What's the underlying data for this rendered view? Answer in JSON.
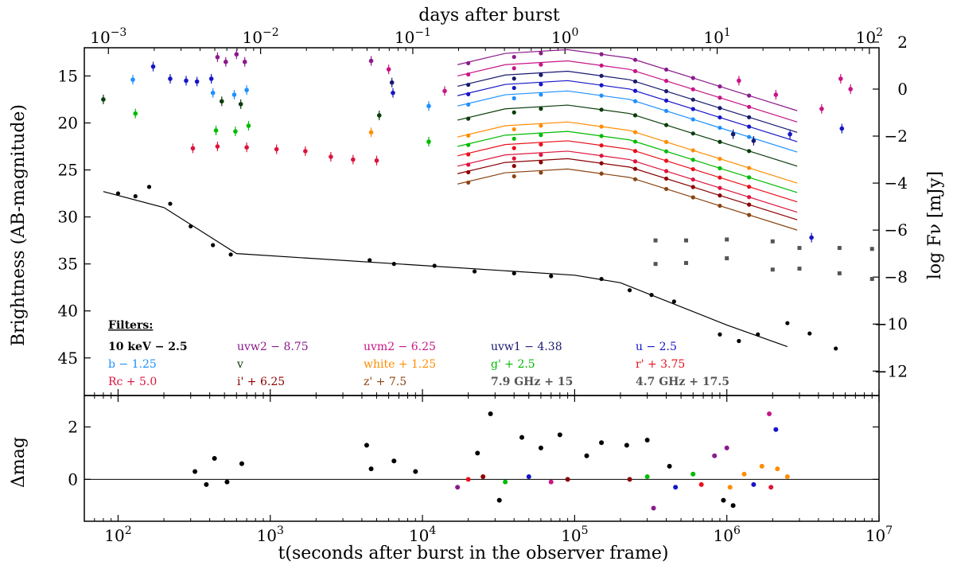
{
  "chart_data": [
    {
      "type": "scatter",
      "panel": "main",
      "xlabel_bottom": "t(seconds after burst in the observer frame)",
      "xlabel_top": "days after burst",
      "ylabel_left": "Brightness (AB-magnitude)",
      "ylabel_right": "log Fν [mJy]",
      "xscale": "log",
      "xlim": [
        60,
        10000000
      ],
      "ylim": [
        12,
        49
      ],
      "y_inverted": true,
      "y_ticks": [
        15,
        20,
        25,
        30,
        35,
        40,
        45
      ],
      "y2_ticks": [
        2,
        0,
        -2,
        -4,
        -6,
        -8,
        -10,
        -12
      ],
      "y2_tick_labels": [
        "2",
        "0",
        "−2",
        "−4",
        "−6",
        "−8",
        "−10",
        "−12"
      ],
      "x_ticks": [
        {
          "base": "10",
          "exp": "2",
          "value": 100
        },
        {
          "base": "10",
          "exp": "3",
          "value": 1000
        },
        {
          "base": "10",
          "exp": "4",
          "value": 10000
        },
        {
          "base": "10",
          "exp": "5",
          "value": 100000
        },
        {
          "base": "10",
          "exp": "6",
          "value": 1000000
        },
        {
          "base": "10",
          "exp": "7",
          "value": 10000000
        }
      ],
      "top_ticks": [
        {
          "base": "10",
          "exp": "−3",
          "value_days": 0.001
        },
        {
          "base": "10",
          "exp": "−2",
          "value_days": 0.01
        },
        {
          "base": "10",
          "exp": "−1",
          "value_days": 0.1
        },
        {
          "base": "10",
          "exp": "0",
          "value_days": 1
        },
        {
          "base": "10",
          "exp": "1",
          "value_days": 10
        },
        {
          "base": "10",
          "exp": "2",
          "value_days": 100
        }
      ],
      "legend_title": "Filters:",
      "legend": [
        {
          "label": "10 keV − 2.5",
          "color": "#000000"
        },
        {
          "label": "uvw2 − 8.75",
          "color": "#8B1A8B"
        },
        {
          "label": "uvm2 − 6.25",
          "color": "#C71585"
        },
        {
          "label": "uvw1 − 4.38",
          "color": "#191970"
        },
        {
          "label": "u − 2.5",
          "color": "#1515C8"
        },
        {
          "label": "b − 1.25",
          "color": "#1E90FF"
        },
        {
          "label": "v",
          "color": "#0B3D0B"
        },
        {
          "label": "white + 1.25",
          "color": "#FF8C00"
        },
        {
          "label": "g' + 2.5",
          "color": "#00BB00"
        },
        {
          "label": "r' + 3.75",
          "color": "#E8101A"
        },
        {
          "label": "Rc + 5.0",
          "color": "#DC143C"
        },
        {
          "label": "i' + 6.25",
          "color": "#8B0000"
        },
        {
          "label": "z' + 7.5",
          "color": "#8B4513"
        },
        {
          "label": "7.9 GHz + 15",
          "color": "#555555"
        },
        {
          "label": "4.7 GHz + 17.5",
          "color": "#555555"
        }
      ],
      "xray_curve": {
        "x": [
          80,
          200,
          600,
          100000,
          200000,
          1000000,
          2500000
        ],
        "y": [
          27.3,
          29.0,
          33.9,
          36.2,
          37.0,
          41.5,
          43.8
        ]
      },
      "xray_points": [
        {
          "x": 100,
          "y": 27.5
        },
        {
          "x": 130,
          "y": 27.8
        },
        {
          "x": 160,
          "y": 26.8
        },
        {
          "x": 220,
          "y": 28.6
        },
        {
          "x": 300,
          "y": 31.0
        },
        {
          "x": 420,
          "y": 33.0
        },
        {
          "x": 550,
          "y": 34.0
        },
        {
          "x": 4500,
          "y": 34.6
        },
        {
          "x": 6500,
          "y": 35.0
        },
        {
          "x": 12000,
          "y": 35.2
        },
        {
          "x": 22000,
          "y": 35.8
        },
        {
          "x": 40000,
          "y": 36.0
        },
        {
          "x": 70000,
          "y": 36.3
        },
        {
          "x": 150000,
          "y": 36.6
        },
        {
          "x": 230000,
          "y": 37.8
        },
        {
          "x": 320000,
          "y": 38.3
        },
        {
          "x": 450000,
          "y": 39.0
        },
        {
          "x": 900000,
          "y": 42.5
        },
        {
          "x": 1200000,
          "y": 43.2
        },
        {
          "x": 1600000,
          "y": 42.5
        },
        {
          "x": 2500000,
          "y": 41.3
        },
        {
          "x": 3500000,
          "y": 42.4
        },
        {
          "x": 5200000,
          "y": 44.0
        }
      ],
      "model_curves": [
        {
          "name": "uvw2",
          "color": "#8B1A8B",
          "m_peak": 12.2,
          "m_end": 18.7
        },
        {
          "name": "uvm2",
          "color": "#C71585",
          "m_peak": 13.4,
          "m_end": 19.9
        },
        {
          "name": "uvw1",
          "color": "#191970",
          "m_peak": 14.5,
          "m_end": 21.0
        },
        {
          "name": "u",
          "color": "#1515C8",
          "m_peak": 15.5,
          "m_end": 22.0
        },
        {
          "name": "b",
          "color": "#1E90FF",
          "m_peak": 16.6,
          "m_end": 23.1
        },
        {
          "name": "v",
          "color": "#0B3D0B",
          "m_peak": 18.1,
          "m_end": 24.6
        },
        {
          "name": "white",
          "color": "#FF8C00",
          "m_peak": 19.9,
          "m_end": 26.4
        },
        {
          "name": "g'",
          "color": "#00BB00",
          "m_peak": 20.9,
          "m_end": 27.4
        },
        {
          "name": "r'",
          "color": "#E8101A",
          "m_peak": 21.9,
          "m_end": 28.4
        },
        {
          "name": "Rc",
          "color": "#DC143C",
          "m_peak": 23.0,
          "m_end": 29.5
        },
        {
          "name": "i'",
          "color": "#8B0000",
          "m_peak": 23.8,
          "m_end": 30.3
        },
        {
          "name": "z'",
          "color": "#8B4513",
          "m_peak": 24.9,
          "m_end": 31.4
        }
      ],
      "optical_points": [
        {
          "x": 80,
          "y": 17.5,
          "c": "#0B3D0B"
        },
        {
          "x": 125,
          "y": 15.4,
          "c": "#1E90FF"
        },
        {
          "x": 130,
          "y": 19.0,
          "c": "#00BB00"
        },
        {
          "x": 170,
          "y": 14.0,
          "c": "#1515C8"
        },
        {
          "x": 220,
          "y": 15.3,
          "c": "#1515C8"
        },
        {
          "x": 280,
          "y": 15.5,
          "c": "#1515C8"
        },
        {
          "x": 330,
          "y": 15.6,
          "c": "#1515C8"
        },
        {
          "x": 410,
          "y": 15.3,
          "c": "#1515C8"
        },
        {
          "x": 450,
          "y": 13.0,
          "c": "#8B1A8B"
        },
        {
          "x": 510,
          "y": 13.5,
          "c": "#8B1A8B"
        },
        {
          "x": 600,
          "y": 12.7,
          "c": "#8B1A8B"
        },
        {
          "x": 680,
          "y": 13.5,
          "c": "#8B1A8B"
        },
        {
          "x": 420,
          "y": 16.8,
          "c": "#1E90FF"
        },
        {
          "x": 580,
          "y": 17.0,
          "c": "#1E90FF"
        },
        {
          "x": 700,
          "y": 16.5,
          "c": "#1E90FF"
        },
        {
          "x": 480,
          "y": 17.7,
          "c": "#0B3D0B"
        },
        {
          "x": 640,
          "y": 18.0,
          "c": "#0B3D0B"
        },
        {
          "x": 440,
          "y": 20.8,
          "c": "#00BB00"
        },
        {
          "x": 590,
          "y": 20.9,
          "c": "#00BB00"
        },
        {
          "x": 720,
          "y": 20.3,
          "c": "#00BB00"
        },
        {
          "x": 310,
          "y": 22.7,
          "c": "#DC143C"
        },
        {
          "x": 450,
          "y": 22.5,
          "c": "#DC143C"
        },
        {
          "x": 700,
          "y": 22.6,
          "c": "#DC143C"
        },
        {
          "x": 1100,
          "y": 22.8,
          "c": "#DC143C"
        },
        {
          "x": 1700,
          "y": 23.0,
          "c": "#DC143C"
        },
        {
          "x": 2500,
          "y": 23.6,
          "c": "#DC143C"
        },
        {
          "x": 3500,
          "y": 23.9,
          "c": "#DC143C"
        },
        {
          "x": 5000,
          "y": 24.0,
          "c": "#DC143C"
        },
        {
          "x": 4600,
          "y": 13.4,
          "c": "#8B1A8B"
        },
        {
          "x": 6000,
          "y": 14.3,
          "c": "#C71585"
        },
        {
          "x": 6300,
          "y": 15.7,
          "c": "#191970"
        },
        {
          "x": 6400,
          "y": 16.8,
          "c": "#1515C8"
        },
        {
          "x": 5200,
          "y": 19.2,
          "c": "#0B3D0B"
        },
        {
          "x": 4600,
          "y": 21.0,
          "c": "#FF8C00"
        },
        {
          "x": 11000,
          "y": 18.2,
          "c": "#1E90FF"
        },
        {
          "x": 11000,
          "y": 22.0,
          "c": "#00BB00"
        },
        {
          "x": 14000,
          "y": 16.6,
          "c": "#C71585"
        },
        {
          "x": 2600000,
          "y": 21.2,
          "c": "#1515C8"
        },
        {
          "x": 1100000,
          "y": 21.2,
          "c": "#191970"
        },
        {
          "x": 1500000,
          "y": 21.9,
          "c": "#191970"
        },
        {
          "x": 2100000,
          "y": 17.0,
          "c": "#C71585"
        },
        {
          "x": 3600000,
          "y": 32.2,
          "c": "#1515C8"
        },
        {
          "x": 4200000,
          "y": 18.5,
          "c": "#C71585"
        },
        {
          "x": 5600000,
          "y": 15.3,
          "c": "#C71585"
        },
        {
          "x": 5700000,
          "y": 20.6,
          "c": "#1515C8"
        },
        {
          "x": 6500000,
          "y": 16.4,
          "c": "#C71585"
        },
        {
          "x": 1200000,
          "y": 15.5,
          "c": "#C71585"
        }
      ],
      "radio_points": [
        {
          "x": 340000,
          "y": 32.5
        },
        {
          "x": 540000,
          "y": 32.5
        },
        {
          "x": 1000000,
          "y": 32.4
        },
        {
          "x": 2000000,
          "y": 32.6
        },
        {
          "x": 3000000,
          "y": 33.3
        },
        {
          "x": 5500000,
          "y": 33.3
        },
        {
          "x": 9000000,
          "y": 33.4
        },
        {
          "x": 340000,
          "y": 35.0
        },
        {
          "x": 540000,
          "y": 34.9
        },
        {
          "x": 1000000,
          "y": 34.4
        },
        {
          "x": 2000000,
          "y": 35.6
        },
        {
          "x": 3000000,
          "y": 35.5
        },
        {
          "x": 5500000,
          "y": 36.0
        },
        {
          "x": 9000000,
          "y": 36.6
        }
      ]
    },
    {
      "type": "scatter",
      "panel": "residuals",
      "ylabel": "Δmag",
      "xscale": "log",
      "xlim": [
        60,
        10000000
      ],
      "ylim": [
        -1.6,
        3.2
      ],
      "y_ticks": [
        2,
        0
      ],
      "reference_line": 0,
      "points": [
        {
          "x": 320,
          "y": 0.3,
          "c": "#000000"
        },
        {
          "x": 380,
          "y": -0.2,
          "c": "#000000"
        },
        {
          "x": 430,
          "y": 0.8,
          "c": "#000000"
        },
        {
          "x": 520,
          "y": -0.1,
          "c": "#000000"
        },
        {
          "x": 650,
          "y": 0.6,
          "c": "#000000"
        },
        {
          "x": 4300,
          "y": 1.3,
          "c": "#000000"
        },
        {
          "x": 4600,
          "y": 0.4,
          "c": "#000000"
        },
        {
          "x": 6500,
          "y": 0.7,
          "c": "#000000"
        },
        {
          "x": 9000,
          "y": 0.3,
          "c": "#000000"
        },
        {
          "x": 23000,
          "y": 1.0,
          "c": "#000000"
        },
        {
          "x": 28000,
          "y": 2.5,
          "c": "#000000"
        },
        {
          "x": 32000,
          "y": -0.8,
          "c": "#000000"
        },
        {
          "x": 45000,
          "y": 1.6,
          "c": "#000000"
        },
        {
          "x": 60000,
          "y": 1.2,
          "c": "#000000"
        },
        {
          "x": 80000,
          "y": 1.7,
          "c": "#000000"
        },
        {
          "x": 120000,
          "y": 0.9,
          "c": "#000000"
        },
        {
          "x": 150000,
          "y": 1.4,
          "c": "#000000"
        },
        {
          "x": 220000,
          "y": 1.3,
          "c": "#000000"
        },
        {
          "x": 300000,
          "y": 1.5,
          "c": "#000000"
        },
        {
          "x": 420000,
          "y": 0.5,
          "c": "#000000"
        },
        {
          "x": 950000,
          "y": -0.8,
          "c": "#000000"
        },
        {
          "x": 1100000,
          "y": -1.0,
          "c": "#000000"
        },
        {
          "x": 17000,
          "y": -0.3,
          "c": "#8B1A8B"
        },
        {
          "x": 20000,
          "y": 0.0,
          "c": "#E8101A"
        },
        {
          "x": 25000,
          "y": 0.1,
          "c": "#8B0000"
        },
        {
          "x": 35000,
          "y": -0.1,
          "c": "#00BB00"
        },
        {
          "x": 50000,
          "y": 0.1,
          "c": "#1515C8"
        },
        {
          "x": 70000,
          "y": -0.1,
          "c": "#C71585"
        },
        {
          "x": 90000,
          "y": 0.0,
          "c": "#8B0000"
        },
        {
          "x": 230000,
          "y": 0.0,
          "c": "#8B0000"
        },
        {
          "x": 300000,
          "y": 0.1,
          "c": "#00BB00"
        },
        {
          "x": 330000,
          "y": -1.1,
          "c": "#8B1A8B"
        },
        {
          "x": 460000,
          "y": -0.3,
          "c": "#1515C8"
        },
        {
          "x": 600000,
          "y": 0.2,
          "c": "#00BB00"
        },
        {
          "x": 680000,
          "y": -0.2,
          "c": "#E8101A"
        },
        {
          "x": 830000,
          "y": 0.9,
          "c": "#8B1A8B"
        },
        {
          "x": 1000000,
          "y": 1.2,
          "c": "#8B1A8B"
        },
        {
          "x": 1050000,
          "y": -0.3,
          "c": "#FF8C00"
        },
        {
          "x": 1300000,
          "y": 0.2,
          "c": "#FF8C00"
        },
        {
          "x": 1500000,
          "y": -0.2,
          "c": "#1515C8"
        },
        {
          "x": 1700000,
          "y": 0.5,
          "c": "#FF8C00"
        },
        {
          "x": 1900000,
          "y": 2.5,
          "c": "#C71585"
        },
        {
          "x": 2100000,
          "y": 1.9,
          "c": "#1515C8"
        },
        {
          "x": 2150000,
          "y": 0.4,
          "c": "#FF8C00"
        },
        {
          "x": 2500000,
          "y": 0.1,
          "c": "#FF8C00"
        },
        {
          "x": 1950000,
          "y": -0.3,
          "c": "#DC143C"
        }
      ]
    }
  ]
}
